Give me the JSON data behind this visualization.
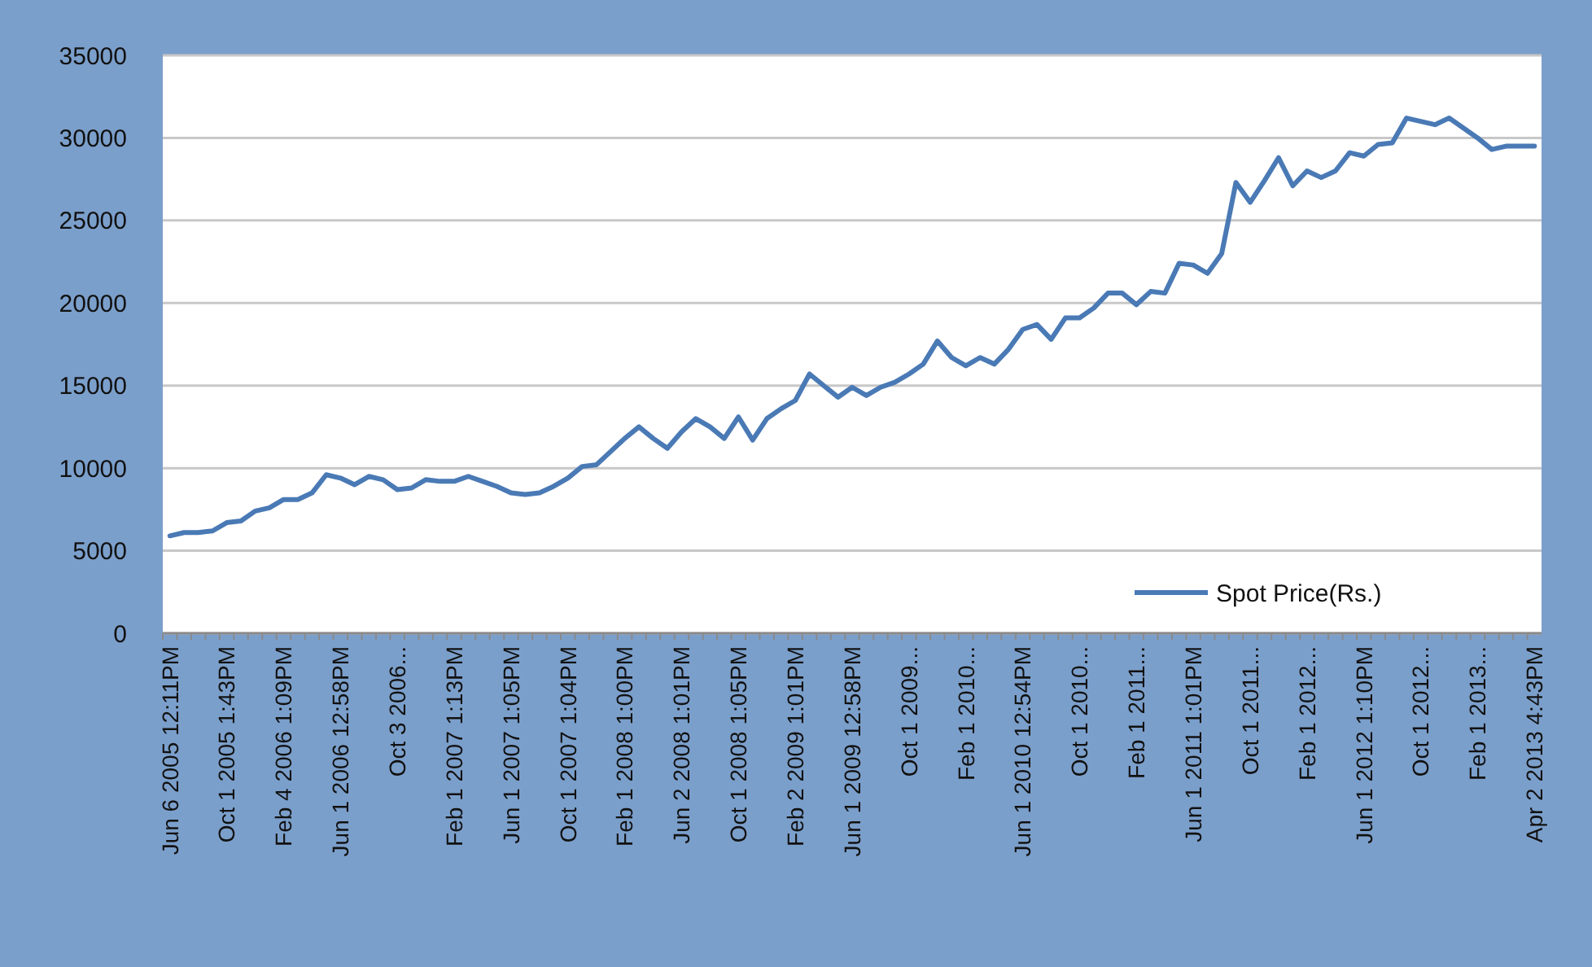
{
  "chart_data": {
    "type": "line",
    "categories": [
      "Jun 6 2005 12:11PM",
      null,
      null,
      null,
      "Oct 1 2005 1:43PM",
      null,
      null,
      null,
      "Feb 4 2006 1:09PM",
      null,
      null,
      null,
      "Jun 1 2006 12:58PM",
      null,
      null,
      null,
      "Oct 3 2006...",
      null,
      null,
      null,
      "Feb 1 2007 1:13PM",
      null,
      null,
      null,
      "Jun 1 2007 1:05PM",
      null,
      null,
      null,
      "Oct 1 2007 1:04PM",
      null,
      null,
      null,
      "Feb 1 2008 1:00PM",
      null,
      null,
      null,
      "Jun 2 2008 1:01PM",
      null,
      null,
      null,
      "Oct 1 2008 1:05PM",
      null,
      null,
      null,
      "Feb 2 2009 1:01PM",
      null,
      null,
      null,
      "Jun 1 2009 12:58PM",
      null,
      null,
      null,
      "Oct 1 2009...",
      null,
      null,
      null,
      "Feb 1 2010...",
      null,
      null,
      null,
      "Jun 1 2010 12:54PM",
      null,
      null,
      null,
      "Oct 1 2010...",
      null,
      null,
      null,
      "Feb 1 2011...",
      null,
      null,
      null,
      "Jun 1 2011 1:01PM",
      null,
      null,
      null,
      "Oct 1 2011...",
      null,
      null,
      null,
      "Feb 1 2012...",
      null,
      null,
      null,
      "Jun 1 2012 1:10PM",
      null,
      null,
      null,
      "Oct 1 2012...",
      null,
      null,
      null,
      "Feb 1 2013...",
      null,
      null,
      null,
      "Apr 2 2013 4:43PM"
    ],
    "series": [
      {
        "name": "Spot Price(Rs.)",
        "color": "#4a7ab5",
        "values": [
          5900,
          6100,
          6100,
          6200,
          6700,
          6800,
          7400,
          7600,
          8100,
          8100,
          8500,
          9600,
          9400,
          9000,
          9500,
          9300,
          8700,
          8800,
          9300,
          9200,
          9200,
          9500,
          9200,
          8900,
          8500,
          8400,
          8500,
          8900,
          9400,
          10100,
          10200,
          11000,
          11800,
          12500,
          11800,
          11200,
          12200,
          13000,
          12500,
          11800,
          13100,
          11700,
          13000,
          13600,
          14100,
          15700,
          15000,
          14300,
          14900,
          14400,
          14900,
          15200,
          15700,
          16300,
          17700,
          16700,
          16200,
          16700,
          16300,
          17200,
          18400,
          18700,
          17800,
          19100,
          19100,
          19700,
          20600,
          20600,
          19900,
          20700,
          20600,
          22400,
          22300,
          21800,
          23000,
          27300,
          26100,
          27400,
          28800,
          27100,
          28000,
          27600,
          28000,
          29100,
          28900,
          29600,
          29700,
          31200,
          31000,
          30800,
          31200,
          30600,
          30000,
          29300,
          29500,
          29500,
          29500
        ]
      }
    ],
    "ylim": [
      0,
      35000
    ],
    "yticks": [
      0,
      5000,
      10000,
      15000,
      20000,
      25000,
      30000,
      35000
    ],
    "grid": "y",
    "legend": "bottom right",
    "marker": "none",
    "line_style": "solid"
  }
}
